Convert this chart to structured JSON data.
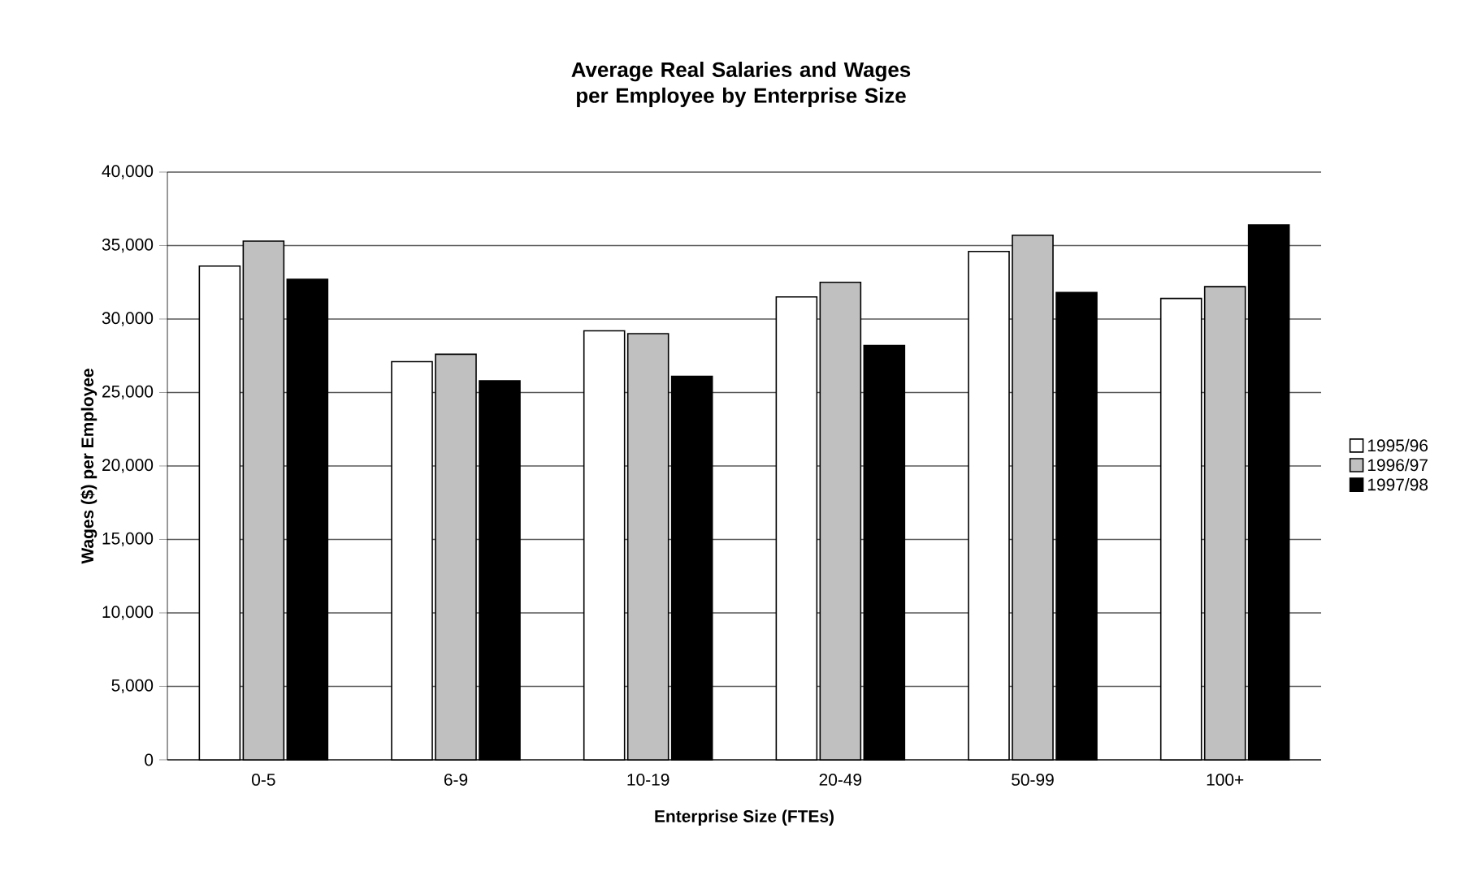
{
  "chart_data": {
    "type": "bar",
    "title": "Average Real Salaries and Wages per Employee by Enterprise Size",
    "xlabel": "Enterprise Size (FTEs)",
    "ylabel": "Wages ($) per Employee",
    "categories": [
      "0-5",
      "6-9",
      "10-19",
      "20-49",
      "50-99",
      "100+"
    ],
    "series": [
      {
        "name": "1995/96",
        "color": "#ffffff",
        "values": [
          33600,
          27100,
          29200,
          31500,
          34600,
          31400
        ]
      },
      {
        "name": "1996/97",
        "color": "#c0c0c0",
        "values": [
          35300,
          27600,
          29000,
          32500,
          35700,
          32200
        ]
      },
      {
        "name": "1997/98",
        "color": "#000000",
        "values": [
          32700,
          25800,
          26100,
          28200,
          31800,
          36400
        ]
      }
    ],
    "ylim": [
      0,
      40000
    ],
    "yticks": [
      {
        "value": 0,
        "label": "0"
      },
      {
        "value": 5000,
        "label": "5,000"
      },
      {
        "value": 10000,
        "label": "10,000"
      },
      {
        "value": 15000,
        "label": "15,000"
      },
      {
        "value": 20000,
        "label": "20,000"
      },
      {
        "value": 25000,
        "label": "25,000"
      },
      {
        "value": 30000,
        "label": "30,000"
      },
      {
        "value": 35000,
        "label": "35,000"
      },
      {
        "value": 40000,
        "label": "40,000"
      }
    ],
    "grid": "y",
    "legend": "right"
  }
}
